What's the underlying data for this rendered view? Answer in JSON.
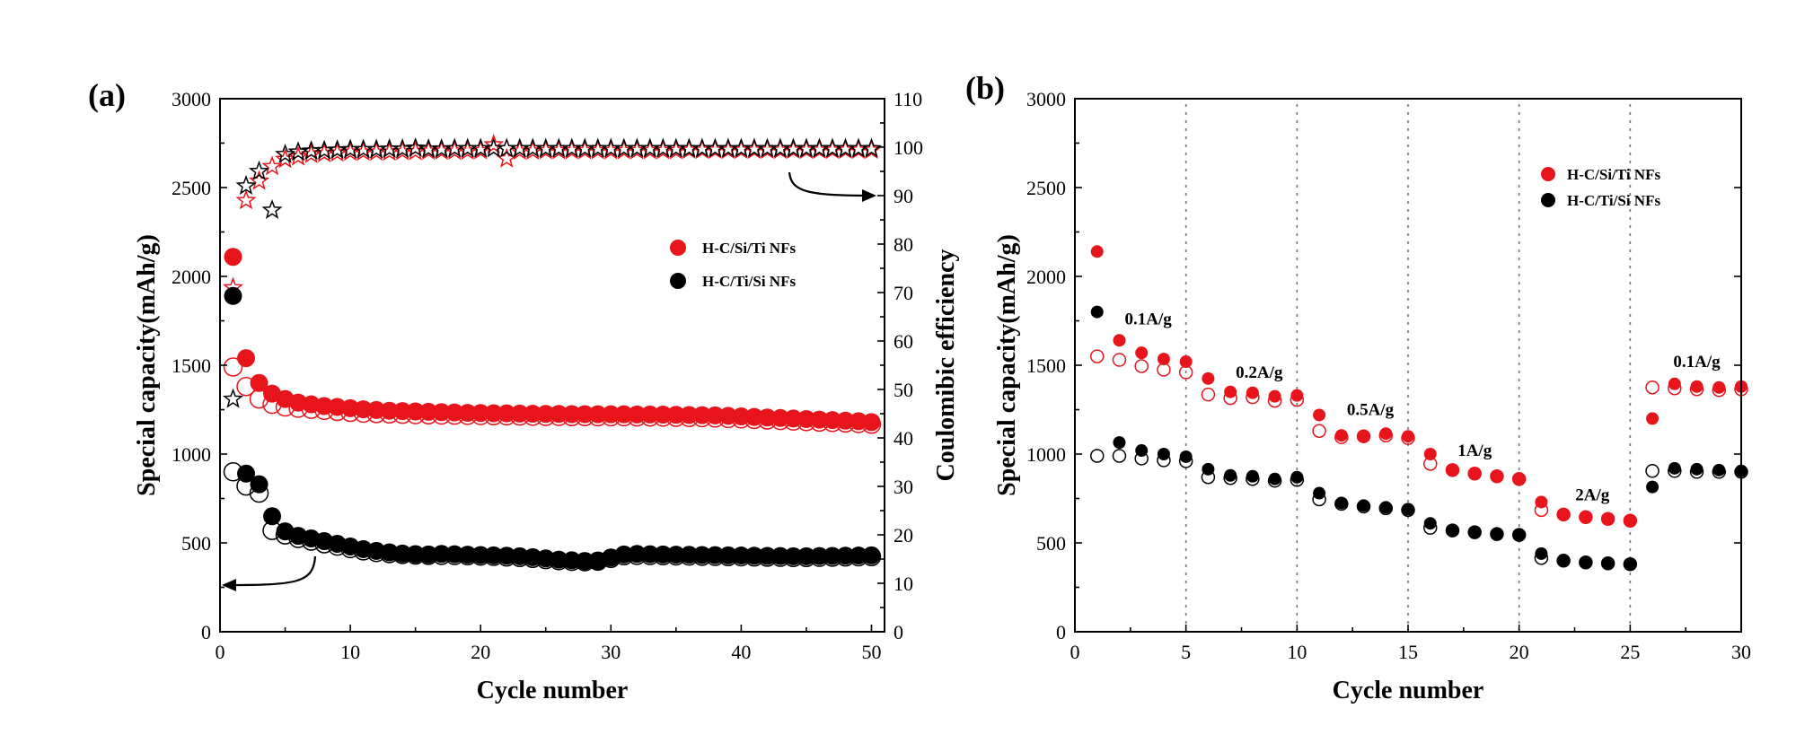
{
  "colors": {
    "red": "#e8141c",
    "black": "#000000"
  },
  "chart_data": [
    {
      "panel": "(a)",
      "type": "scatter",
      "xlabel": "Cycle number",
      "ylabel": "Special capacity(mAh/g)",
      "y2label": "Coulomibic efficiency",
      "xlim": [
        0,
        51
      ],
      "ylim": [
        0,
        3000
      ],
      "y2lim": [
        0,
        110
      ],
      "xticks": [
        0,
        10,
        20,
        30,
        40,
        50
      ],
      "yticks": [
        0,
        500,
        1000,
        1500,
        2000,
        2500,
        3000
      ],
      "y2ticks": [
        0,
        10,
        20,
        30,
        40,
        50,
        60,
        70,
        80,
        90,
        100,
        110
      ],
      "legend": [
        "H-C/Si/Ti NFs",
        "H-C/Ti/Si NFs"
      ],
      "legend_position": "center-right",
      "series": [
        {
          "name": "H-C/Si/Ti NFs charge",
          "color": "red",
          "marker": "circle",
          "filled": true,
          "axis": "left",
          "x": [
            1,
            2,
            3,
            4,
            5,
            6,
            7,
            8,
            9,
            10,
            11,
            12,
            13,
            14,
            15,
            16,
            17,
            18,
            19,
            20,
            21,
            22,
            23,
            24,
            25,
            26,
            27,
            28,
            29,
            30,
            31,
            32,
            33,
            34,
            35,
            36,
            37,
            38,
            39,
            40,
            41,
            42,
            43,
            44,
            45,
            46,
            47,
            48,
            49,
            50
          ],
          "y": [
            2110,
            1540,
            1400,
            1340,
            1310,
            1290,
            1280,
            1270,
            1265,
            1258,
            1252,
            1248,
            1244,
            1242,
            1240,
            1238,
            1236,
            1234,
            1232,
            1231,
            1230,
            1229,
            1228,
            1227,
            1226,
            1226,
            1225,
            1225,
            1224,
            1224,
            1224,
            1223,
            1223,
            1222,
            1221,
            1220,
            1219,
            1218,
            1215,
            1212,
            1209,
            1206,
            1203,
            1200,
            1197,
            1194,
            1191,
            1188,
            1185,
            1180
          ]
        },
        {
          "name": "H-C/Si/Ti NFs discharge",
          "color": "red",
          "marker": "circle",
          "filled": false,
          "axis": "left",
          "x": [
            1,
            2,
            3,
            4,
            5,
            6,
            7,
            8,
            9,
            10,
            11,
            12,
            13,
            14,
            15,
            16,
            17,
            18,
            19,
            20,
            21,
            22,
            23,
            24,
            25,
            26,
            27,
            28,
            29,
            30,
            31,
            32,
            33,
            34,
            35,
            36,
            37,
            38,
            39,
            40,
            41,
            42,
            43,
            44,
            45,
            46,
            47,
            48,
            49,
            50
          ],
          "y": [
            1490,
            1380,
            1310,
            1280,
            1265,
            1258,
            1252,
            1246,
            1240,
            1235,
            1230,
            1228,
            1226,
            1224,
            1222,
            1221,
            1220,
            1219,
            1218,
            1217,
            1216,
            1215,
            1214,
            1213,
            1212,
            1212,
            1211,
            1211,
            1210,
            1210,
            1210,
            1209,
            1209,
            1208,
            1207,
            1206,
            1205,
            1203,
            1200,
            1198,
            1195,
            1192,
            1189,
            1186,
            1183,
            1180,
            1178,
            1175,
            1172,
            1168
          ]
        },
        {
          "name": "H-C/Ti/Si NFs charge",
          "color": "black",
          "marker": "circle",
          "filled": true,
          "axis": "left",
          "x": [
            1,
            2,
            3,
            4,
            5,
            6,
            7,
            8,
            9,
            10,
            11,
            12,
            13,
            14,
            15,
            16,
            17,
            18,
            19,
            20,
            21,
            22,
            23,
            24,
            25,
            26,
            27,
            28,
            29,
            30,
            31,
            32,
            33,
            34,
            35,
            36,
            37,
            38,
            39,
            40,
            41,
            42,
            43,
            44,
            45,
            46,
            47,
            48,
            49,
            50
          ],
          "y": [
            1890,
            890,
            830,
            650,
            565,
            540,
            525,
            510,
            495,
            480,
            465,
            455,
            447,
            440,
            437,
            435,
            438,
            436,
            434,
            432,
            430,
            428,
            425,
            420,
            413,
            406,
            402,
            398,
            400,
            418,
            435,
            438,
            436,
            435,
            434,
            433,
            432,
            431,
            430,
            429,
            428,
            427,
            426,
            425,
            425,
            426,
            427,
            428,
            429,
            430
          ]
        },
        {
          "name": "H-C/Ti/Si NFs discharge",
          "color": "black",
          "marker": "circle",
          "filled": false,
          "axis": "left",
          "x": [
            1,
            2,
            3,
            4,
            5,
            6,
            7,
            8,
            9,
            10,
            11,
            12,
            13,
            14,
            15,
            16,
            17,
            18,
            19,
            20,
            21,
            22,
            23,
            24,
            25,
            26,
            27,
            28,
            29,
            30,
            31,
            32,
            33,
            34,
            35,
            36,
            37,
            38,
            39,
            40,
            41,
            42,
            43,
            44,
            45,
            46,
            47,
            48,
            49,
            50
          ],
          "y": [
            900,
            820,
            780,
            570,
            545,
            525,
            510,
            495,
            482,
            468,
            455,
            446,
            440,
            435,
            432,
            430,
            430,
            429,
            428,
            426,
            424,
            421,
            418,
            413,
            406,
            400,
            396,
            394,
            397,
            413,
            428,
            430,
            429,
            428,
            427,
            426,
            425,
            424,
            423,
            422,
            421,
            420,
            419,
            418,
            418,
            419,
            420,
            421,
            422,
            423
          ]
        },
        {
          "name": "H-C/Si/Ti NFs coulombic efficiency",
          "color": "red",
          "marker": "star",
          "filled": false,
          "axis": "right",
          "x": [
            1,
            2,
            3,
            4,
            5,
            6,
            7,
            8,
            9,
            10,
            11,
            12,
            13,
            14,
            15,
            16,
            17,
            18,
            19,
            20,
            21,
            22,
            23,
            24,
            25,
            26,
            27,
            28,
            29,
            30,
            31,
            32,
            33,
            34,
            35,
            36,
            37,
            38,
            39,
            40,
            41,
            42,
            43,
            44,
            45,
            46,
            47,
            48,
            49,
            50
          ],
          "y": [
            71,
            89,
            93,
            96,
            97.5,
            98,
            98.5,
            98.7,
            98.8,
            99,
            99,
            99,
            99,
            99.1,
            99.1,
            99.2,
            99.2,
            99.2,
            99.2,
            99.3,
            100.5,
            97.6,
            99.2,
            99.2,
            99.3,
            99.3,
            99.3,
            99.3,
            99.3,
            99.3,
            99.3,
            99.3,
            99.3,
            99.3,
            99.3,
            99.4,
            99.4,
            99.4,
            99.4,
            99.4,
            99.4,
            99.4,
            99.4,
            99.4,
            99.4,
            99.4,
            99.4,
            99.4,
            99.4,
            99.4
          ]
        },
        {
          "name": "H-C/Ti/Si NFs coulombic efficiency",
          "color": "black",
          "marker": "star",
          "filled": false,
          "axis": "right",
          "x": [
            1,
            2,
            3,
            4,
            5,
            6,
            7,
            8,
            9,
            10,
            11,
            12,
            13,
            14,
            15,
            16,
            17,
            18,
            19,
            20,
            21,
            22,
            23,
            24,
            25,
            26,
            27,
            28,
            29,
            30,
            31,
            32,
            33,
            34,
            35,
            36,
            37,
            38,
            39,
            40,
            41,
            42,
            43,
            44,
            45,
            46,
            47,
            48,
            49,
            50
          ],
          "y": [
            48,
            92,
            95,
            87,
            98.5,
            99,
            99.2,
            99.3,
            99.4,
            99.5,
            99.5,
            99.5,
            99.6,
            99.6,
            99.8,
            99.6,
            99.6,
            99.7,
            99.7,
            99.7,
            99.7,
            99.7,
            99.7,
            99.7,
            99.7,
            99.7,
            99.7,
            99.7,
            99.7,
            99.7,
            99.7,
            99.7,
            99.7,
            99.7,
            99.7,
            99.7,
            99.7,
            99.7,
            99.7,
            99.7,
            99.7,
            99.7,
            99.7,
            99.7,
            99.7,
            99.7,
            99.7,
            99.7,
            99.7,
            99.7
          ]
        }
      ],
      "annotations": [
        {
          "type": "arrow",
          "direction": "left",
          "points_to": "left y-axis (capacity)"
        },
        {
          "type": "arrow",
          "direction": "right",
          "points_to": "right y-axis (coulombic efficiency)"
        }
      ]
    },
    {
      "panel": "(b)",
      "type": "scatter",
      "xlabel": "Cycle number",
      "ylabel": "Special capacity(mAh/g)",
      "xlim": [
        0,
        30
      ],
      "ylim": [
        0,
        3000
      ],
      "xticks": [
        0,
        5,
        10,
        15,
        20,
        25,
        30
      ],
      "yticks": [
        0,
        500,
        1000,
        1500,
        2000,
        2500,
        3000
      ],
      "vlines": [
        5,
        10,
        15,
        20,
        25
      ],
      "legend": [
        "H-C/Si/Ti NFs",
        "H-C/Ti/Si NFs"
      ],
      "legend_position": "top-right",
      "rate_labels": [
        {
          "text": "0.1A/g",
          "x": 3.3,
          "y": 1730
        },
        {
          "text": "0.2A/g",
          "x": 8.3,
          "y": 1430
        },
        {
          "text": "0.5A/g",
          "x": 13.3,
          "y": 1220
        },
        {
          "text": "1A/g",
          "x": 18.0,
          "y": 990
        },
        {
          "text": "2A/g",
          "x": 23.3,
          "y": 740
        },
        {
          "text": "0.1A/g",
          "x": 28.0,
          "y": 1490
        }
      ],
      "series": [
        {
          "name": "H-C/Si/Ti NFs charge",
          "color": "red",
          "marker": "circle",
          "filled": true,
          "x": [
            1,
            2,
            3,
            4,
            5,
            6,
            7,
            8,
            9,
            10,
            11,
            12,
            13,
            14,
            15,
            16,
            17,
            18,
            19,
            20,
            21,
            22,
            23,
            24,
            25,
            26,
            27,
            28,
            29,
            30
          ],
          "y": [
            2140,
            1640,
            1570,
            1535,
            1520,
            1425,
            1350,
            1345,
            1325,
            1330,
            1220,
            1105,
            1100,
            1115,
            1100,
            1000,
            910,
            890,
            875,
            860,
            730,
            660,
            645,
            635,
            625,
            1200,
            1395,
            1380,
            1375,
            1380
          ]
        },
        {
          "name": "H-C/Si/Ti NFs discharge",
          "color": "red",
          "marker": "circle",
          "filled": false,
          "x": [
            1,
            2,
            3,
            4,
            5,
            6,
            7,
            8,
            9,
            10,
            11,
            12,
            13,
            14,
            15,
            16,
            17,
            18,
            19,
            20,
            21,
            22,
            23,
            24,
            25,
            26,
            27,
            28,
            29,
            30
          ],
          "y": [
            1550,
            1530,
            1495,
            1475,
            1460,
            1335,
            1315,
            1320,
            1300,
            1305,
            1130,
            1095,
            1100,
            1105,
            1090,
            945,
            910,
            890,
            875,
            860,
            685,
            660,
            645,
            635,
            625,
            1375,
            1370,
            1365,
            1360,
            1365
          ]
        },
        {
          "name": "H-C/Ti/Si NFs charge",
          "color": "black",
          "marker": "circle",
          "filled": true,
          "x": [
            1,
            2,
            3,
            4,
            5,
            6,
            7,
            8,
            9,
            10,
            11,
            12,
            13,
            14,
            15,
            16,
            17,
            18,
            19,
            20,
            21,
            22,
            23,
            24,
            25,
            26,
            27,
            28,
            29,
            30
          ],
          "y": [
            1800,
            1065,
            1020,
            1000,
            985,
            915,
            880,
            875,
            860,
            870,
            780,
            725,
            710,
            700,
            690,
            610,
            570,
            560,
            550,
            545,
            440,
            400,
            390,
            385,
            380,
            815,
            920,
            915,
            910,
            905
          ]
        },
        {
          "name": "H-C/Ti/Si NFs discharge",
          "color": "black",
          "marker": "circle",
          "filled": false,
          "x": [
            1,
            2,
            3,
            4,
            5,
            6,
            7,
            8,
            9,
            10,
            11,
            12,
            13,
            14,
            15,
            16,
            17,
            18,
            19,
            20,
            21,
            22,
            23,
            24,
            25,
            26,
            27,
            28,
            29,
            30
          ],
          "y": [
            990,
            990,
            975,
            965,
            960,
            870,
            865,
            860,
            850,
            855,
            745,
            720,
            705,
            695,
            685,
            585,
            570,
            560,
            550,
            545,
            415,
            400,
            390,
            385,
            380,
            905,
            905,
            900,
            900,
            900
          ]
        }
      ]
    }
  ]
}
